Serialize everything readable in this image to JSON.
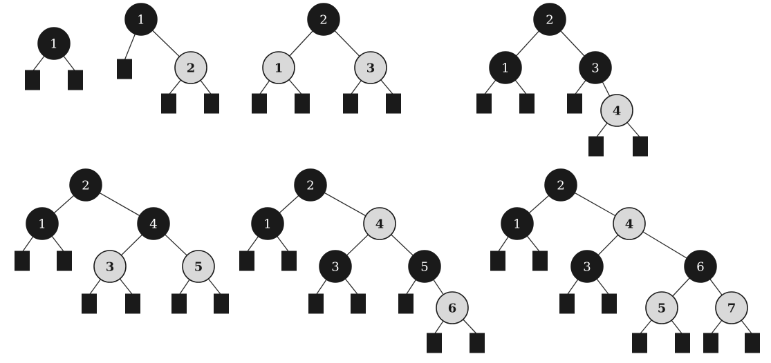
{
  "colors": {
    "black_node": "#1a1a1a",
    "red_node": "#d9d9d9",
    "leaf": "#1a1a1a",
    "edge": "#2b2b2b",
    "background": "#ffffff"
  },
  "trees": [
    {
      "name": "tree-1",
      "root": {
        "key": "1",
        "color": "black",
        "left": null,
        "right": null
      }
    },
    {
      "name": "tree-2",
      "root": {
        "key": "1",
        "color": "black",
        "left": null,
        "right": {
          "key": "2",
          "color": "red",
          "left": null,
          "right": null
        }
      }
    },
    {
      "name": "tree-3",
      "root": {
        "key": "2",
        "color": "black",
        "left": {
          "key": "1",
          "color": "red",
          "left": null,
          "right": null
        },
        "right": {
          "key": "3",
          "color": "red",
          "left": null,
          "right": null
        }
      }
    },
    {
      "name": "tree-4",
      "root": {
        "key": "2",
        "color": "black",
        "left": {
          "key": "1",
          "color": "black",
          "left": null,
          "right": null
        },
        "right": {
          "key": "3",
          "color": "black",
          "left": null,
          "right": {
            "key": "4",
            "color": "red",
            "left": null,
            "right": null
          }
        }
      }
    },
    {
      "name": "tree-5",
      "root": {
        "key": "2",
        "color": "black",
        "left": {
          "key": "1",
          "color": "black",
          "left": null,
          "right": null
        },
        "right": {
          "key": "4",
          "color": "black",
          "left": {
            "key": "3",
            "color": "red",
            "left": null,
            "right": null
          },
          "right": {
            "key": "5",
            "color": "red",
            "left": null,
            "right": null
          }
        }
      }
    },
    {
      "name": "tree-6",
      "root": {
        "key": "2",
        "color": "black",
        "left": {
          "key": "1",
          "color": "black",
          "left": null,
          "right": null
        },
        "right": {
          "key": "4",
          "color": "red",
          "left": {
            "key": "3",
            "color": "black",
            "left": null,
            "right": null
          },
          "right": {
            "key": "5",
            "color": "black",
            "left": null,
            "right": {
              "key": "6",
              "color": "red",
              "left": null,
              "right": null
            }
          }
        }
      }
    },
    {
      "name": "tree-7",
      "root": {
        "key": "2",
        "color": "black",
        "left": {
          "key": "1",
          "color": "black",
          "left": null,
          "right": null
        },
        "right": {
          "key": "4",
          "color": "red",
          "left": {
            "key": "3",
            "color": "black",
            "left": null,
            "right": null
          },
          "right": {
            "key": "6",
            "color": "black",
            "left": {
              "key": "5",
              "color": "red",
              "left": null,
              "right": null
            },
            "right": {
              "key": "7",
              "color": "red",
              "left": null,
              "right": null
            }
          }
        }
      }
    }
  ]
}
